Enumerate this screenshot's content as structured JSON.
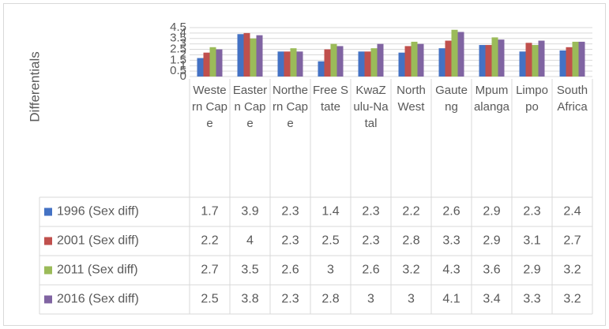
{
  "chart_data": {
    "type": "bar",
    "y_label": "Differentials",
    "categories": [
      "Western Cape",
      "Eastern Cape",
      "Northern Cape",
      "Free State",
      "KwaZulu-Natal",
      "North West",
      "Gauteng",
      "Mpumalanga",
      "Limpopo",
      "South Africa"
    ],
    "series": [
      {
        "name": "1996 (Sex diff)",
        "color": "#4472c4",
        "values": [
          1.7,
          3.9,
          2.3,
          1.4,
          2.3,
          2.2,
          2.6,
          2.9,
          2.3,
          2.4
        ]
      },
      {
        "name": "2001 (Sex diff)",
        "color": "#c0504d",
        "values": [
          2.2,
          4,
          2.3,
          2.5,
          2.3,
          2.8,
          3.3,
          2.9,
          3.1,
          2.7
        ]
      },
      {
        "name": "2011 (Sex diff)",
        "color": "#9bbb59",
        "values": [
          2.7,
          3.5,
          2.6,
          3,
          2.6,
          3.2,
          4.3,
          3.6,
          2.9,
          3.2
        ]
      },
      {
        "name": "2016 (Sex diff)",
        "color": "#8064a2",
        "values": [
          2.5,
          3.8,
          2.3,
          2.8,
          3,
          3,
          4.1,
          3.4,
          3.3,
          3.2
        ]
      }
    ],
    "ylim": [
      0,
      4.5
    ],
    "yticks": [
      0,
      0.5,
      1,
      1.5,
      2,
      2.5,
      3,
      3.5,
      4,
      4.5
    ],
    "grid": true,
    "legend": "table"
  }
}
